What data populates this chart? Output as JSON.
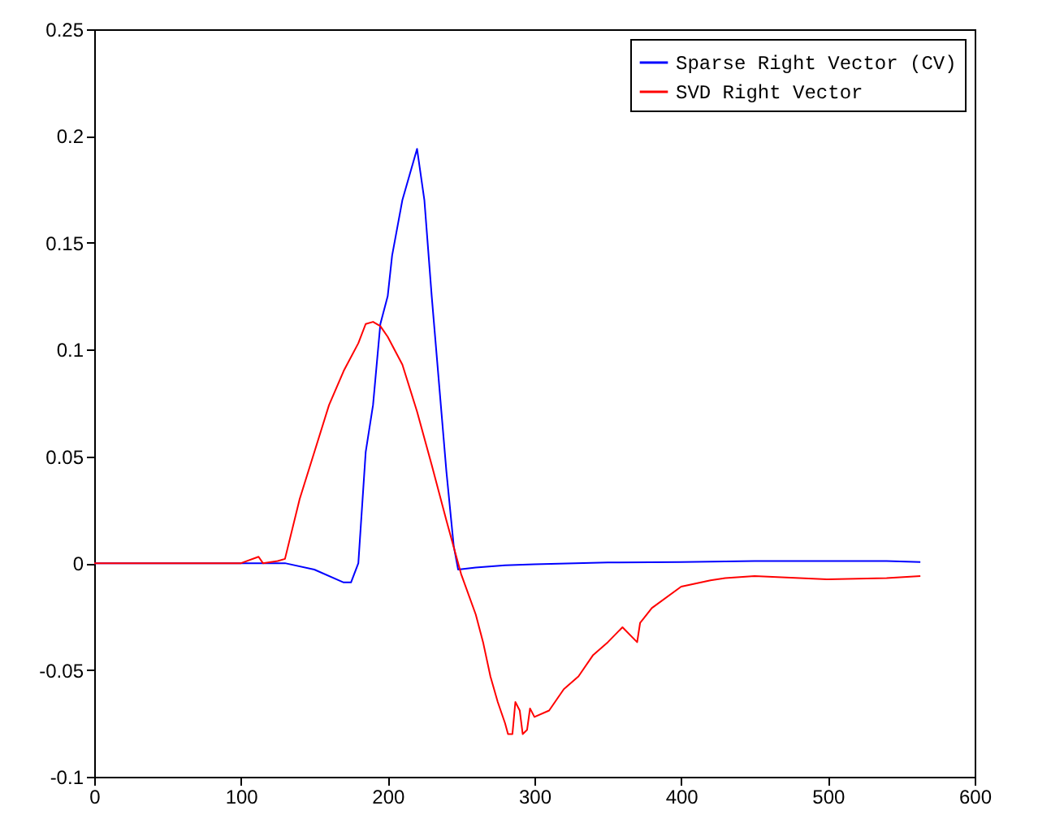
{
  "chart_data": {
    "type": "line",
    "xlim": [
      0,
      600
    ],
    "ylim": [
      -0.1,
      0.25
    ],
    "xticks": [
      0,
      100,
      200,
      300,
      400,
      500,
      600
    ],
    "yticks": [
      -0.1,
      -0.05,
      0,
      0.05,
      0.1,
      0.15,
      0.2,
      0.25
    ],
    "grid": false,
    "legend": "top right",
    "series": [
      {
        "name": "Sparse Right Vector (CV)",
        "color": "#0000ff",
        "x": [
          0,
          100,
          130,
          150,
          170,
          175,
          180,
          185,
          190,
          195,
          200,
          203,
          210,
          215,
          220,
          225,
          230,
          235,
          240,
          245,
          248,
          260,
          280,
          300,
          350,
          400,
          450,
          500,
          540,
          563
        ],
        "values": [
          0,
          0,
          0,
          -0.003,
          -0.009,
          -0.009,
          0,
          0.052,
          0.074,
          0.112,
          0.125,
          0.144,
          0.17,
          0.182,
          0.194,
          0.17,
          0.125,
          0.084,
          0.043,
          0.008,
          -0.003,
          -0.002,
          -0.001,
          -0.0005,
          0.0003,
          0.0005,
          0.001,
          0.001,
          0.001,
          0.0005
        ]
      },
      {
        "name": "SVD Right Vector",
        "color": "#ff0000",
        "x": [
          0,
          100,
          112,
          115,
          125,
          130,
          140,
          150,
          160,
          170,
          180,
          185,
          190,
          195,
          200,
          210,
          220,
          230,
          240,
          250,
          260,
          265,
          270,
          275,
          280,
          282,
          285,
          287,
          290,
          292,
          295,
          297,
          300,
          310,
          320,
          330,
          340,
          350,
          360,
          370,
          372,
          380,
          400,
          420,
          430,
          450,
          500,
          540,
          563
        ],
        "values": [
          0,
          0,
          0.003,
          0,
          0.001,
          0.002,
          0.03,
          0.052,
          0.074,
          0.09,
          0.103,
          0.112,
          0.113,
          0.111,
          0.106,
          0.093,
          0.071,
          0.046,
          0.02,
          -0.005,
          -0.024,
          -0.037,
          -0.053,
          -0.065,
          -0.075,
          -0.08,
          -0.08,
          -0.065,
          -0.069,
          -0.08,
          -0.078,
          -0.068,
          -0.072,
          -0.069,
          -0.059,
          -0.053,
          -0.043,
          -0.037,
          -0.03,
          -0.037,
          -0.028,
          -0.021,
          -0.011,
          -0.008,
          -0.007,
          -0.006,
          -0.0076,
          -0.007,
          -0.006
        ]
      }
    ]
  }
}
